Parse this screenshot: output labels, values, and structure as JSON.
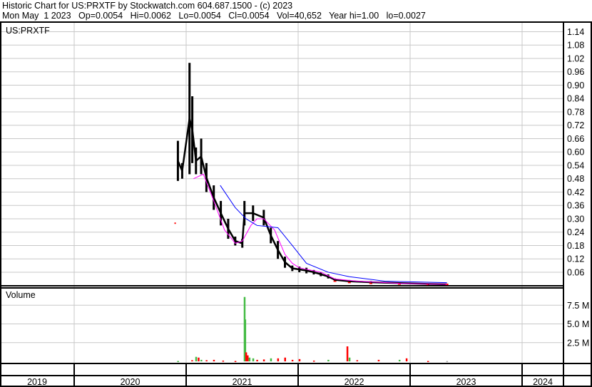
{
  "header": {
    "title": "Historic Chart for US:PRXTF by Stockwatch.com 604.687.1500 - (c) 2023",
    "quote": "Mon May  1 2023   Op=0.0054   Hi=0.0062   Lo=0.0054   Cl=0.0054   Vol=40,652   Year hi=1.00   lo=0.0027"
  },
  "colors": {
    "price": "#000000",
    "down_mark": "#ff0000",
    "ma_short": "#ff00ff",
    "ma_long": "#0000ff",
    "vol_up": "#44bb44",
    "vol_down": "#ff0000",
    "grid": "#c8c8c8"
  },
  "chart_data": [
    {
      "type": "line",
      "title": "US:PRXTF",
      "y_ticks": [
        "0.06",
        "0.12",
        "0.18",
        "0.24",
        "0.30",
        "0.36",
        "0.42",
        "0.48",
        "0.54",
        "0.60",
        "0.66",
        "0.72",
        "0.78",
        "0.84",
        "0.90",
        "0.96",
        "1.02",
        "1.08",
        "1.14"
      ],
      "ylim": [
        0,
        1.14
      ],
      "x_ticks": [
        "2019",
        "2020",
        "2021",
        "2022",
        "2023",
        "2024"
      ],
      "xlim": [
        "2019-05-01",
        "2024-05-01"
      ],
      "grid": true,
      "price_ranges": [
        {
          "date": "2020-11-26",
          "high": 0.28,
          "low": 0.28
        },
        {
          "date": "2020-12-05",
          "high": 0.65,
          "low": 0.47
        },
        {
          "date": "2020-12-19",
          "high": 0.55,
          "low": 0.48
        },
        {
          "date": "2021-01-12",
          "high": 1.0,
          "low": 0.5
        },
        {
          "date": "2021-01-21",
          "high": 0.85,
          "low": 0.55
        },
        {
          "date": "2021-02-02",
          "high": 0.62,
          "low": 0.5
        },
        {
          "date": "2021-02-19",
          "high": 0.66,
          "low": 0.5
        },
        {
          "date": "2021-03-08",
          "high": 0.55,
          "low": 0.42
        },
        {
          "date": "2021-04-01",
          "high": 0.45,
          "low": 0.34
        },
        {
          "date": "2021-04-24",
          "high": 0.38,
          "low": 0.27
        },
        {
          "date": "2021-05-18",
          "high": 0.3,
          "low": 0.21
        },
        {
          "date": "2021-06-10",
          "high": 0.22,
          "low": 0.18
        },
        {
          "date": "2021-07-03",
          "high": 0.21,
          "low": 0.17
        },
        {
          "date": "2021-07-10",
          "high": 0.38,
          "low": 0.27
        },
        {
          "date": "2021-08-07",
          "high": 0.36,
          "low": 0.29
        },
        {
          "date": "2021-09-11",
          "high": 0.34,
          "low": 0.27
        },
        {
          "date": "2021-10-04",
          "high": 0.26,
          "low": 0.19
        },
        {
          "date": "2021-10-27",
          "high": 0.2,
          "low": 0.12
        },
        {
          "date": "2021-11-19",
          "high": 0.13,
          "low": 0.08
        },
        {
          "date": "2021-12-13",
          "high": 0.09,
          "low": 0.065
        },
        {
          "date": "2022-01-05",
          "high": 0.085,
          "low": 0.06
        },
        {
          "date": "2022-01-28",
          "high": 0.08,
          "low": 0.055
        },
        {
          "date": "2022-02-21",
          "high": 0.07,
          "low": 0.05
        },
        {
          "date": "2022-03-16",
          "high": 0.06,
          "low": 0.042
        },
        {
          "date": "2022-04-09",
          "high": 0.05,
          "low": 0.032
        },
        {
          "date": "2022-05-01",
          "high": 0.032,
          "low": 0.02
        },
        {
          "date": "2022-06-17",
          "high": 0.025,
          "low": 0.014
        },
        {
          "date": "2022-08-26",
          "high": 0.02,
          "low": 0.01
        },
        {
          "date": "2022-11-27",
          "high": 0.015,
          "low": 0.007
        },
        {
          "date": "2023-02-28",
          "high": 0.01,
          "low": 0.005
        },
        {
          "date": "2023-05-01",
          "high": 0.0062,
          "low": 0.0054
        }
      ],
      "series": [
        {
          "values": [
            [
              "2021-01-25",
              0.48
            ],
            [
              "2021-02-26",
              0.5
            ],
            [
              "2021-04-01",
              0.38
            ],
            [
              "2021-05-06",
              0.25
            ],
            [
              "2021-06-10",
              0.19
            ],
            [
              "2021-07-03",
              0.2
            ],
            [
              "2021-07-31",
              0.27
            ],
            [
              "2021-08-20",
              0.3
            ],
            [
              "2021-09-11",
              0.3
            ],
            [
              "2021-10-16",
              0.25
            ],
            [
              "2021-11-19",
              0.14
            ],
            [
              "2021-12-13",
              0.1
            ],
            [
              "2022-01-05",
              0.08
            ],
            [
              "2022-03-16",
              0.06
            ],
            [
              "2022-05-01",
              0.03
            ],
            [
              "2022-07-12",
              0.02
            ],
            [
              "2022-11-27",
              0.01
            ],
            [
              "2023-05-01",
              0.006
            ]
          ]
        },
        {
          "values": [
            [
              "2021-04-22",
              0.45
            ],
            [
              "2021-06-10",
              0.35
            ],
            [
              "2021-07-15",
              0.3
            ],
            [
              "2021-08-20",
              0.27
            ],
            [
              "2021-10-27",
              0.26
            ],
            [
              "2021-12-13",
              0.18
            ],
            [
              "2022-01-28",
              0.1
            ],
            [
              "2022-04-09",
              0.06
            ],
            [
              "2022-06-17",
              0.04
            ],
            [
              "2022-10-10",
              0.02
            ],
            [
              "2023-02-28",
              0.015
            ],
            [
              "2023-05-01",
              0.013
            ]
          ]
        }
      ]
    },
    {
      "type": "bar",
      "title": "Volume",
      "y_ticks": [
        "2.5 M",
        "5.0 M",
        "7.5 M"
      ],
      "ylim": [
        0,
        10
      ],
      "bars": [
        {
          "date": "2020-12-05",
          "value": 0.05,
          "dir": "up"
        },
        {
          "date": "2021-01-20",
          "value": 0.15,
          "dir": "down"
        },
        {
          "date": "2021-02-02",
          "value": 0.6,
          "dir": "up"
        },
        {
          "date": "2021-02-10",
          "value": 0.5,
          "dir": "down"
        },
        {
          "date": "2021-02-19",
          "value": 0.2,
          "dir": "up"
        },
        {
          "date": "2021-03-08",
          "value": 0.15,
          "dir": "down"
        },
        {
          "date": "2021-04-01",
          "value": 0.2,
          "dir": "down"
        },
        {
          "date": "2021-05-01",
          "value": 0.1,
          "dir": "down"
        },
        {
          "date": "2021-06-10",
          "value": 0.05,
          "dir": "down"
        },
        {
          "date": "2021-07-10",
          "value": 8.6,
          "dir": "up"
        },
        {
          "date": "2021-07-12",
          "value": 5.6,
          "dir": "up"
        },
        {
          "date": "2021-07-15",
          "value": 1.2,
          "dir": "down"
        },
        {
          "date": "2021-07-20",
          "value": 0.8,
          "dir": "down"
        },
        {
          "date": "2021-07-26",
          "value": 0.5,
          "dir": "up"
        },
        {
          "date": "2021-08-07",
          "value": 0.4,
          "dir": "up"
        },
        {
          "date": "2021-08-20",
          "value": 0.2,
          "dir": "down"
        },
        {
          "date": "2021-09-11",
          "value": 0.25,
          "dir": "down"
        },
        {
          "date": "2021-10-04",
          "value": 0.4,
          "dir": "up"
        },
        {
          "date": "2021-10-27",
          "value": 0.4,
          "dir": "down"
        },
        {
          "date": "2021-11-19",
          "value": 0.5,
          "dir": "down"
        },
        {
          "date": "2021-12-13",
          "value": 0.2,
          "dir": "down"
        },
        {
          "date": "2022-01-05",
          "value": 0.3,
          "dir": "down"
        },
        {
          "date": "2022-02-21",
          "value": 0.1,
          "dir": "down"
        },
        {
          "date": "2022-04-09",
          "value": 0.2,
          "dir": "up"
        },
        {
          "date": "2022-06-10",
          "value": 2.0,
          "dir": "down"
        },
        {
          "date": "2022-06-17",
          "value": 0.5,
          "dir": "up"
        },
        {
          "date": "2022-07-12",
          "value": 0.15,
          "dir": "down"
        },
        {
          "date": "2022-09-20",
          "value": 0.2,
          "dir": "down"
        },
        {
          "date": "2022-11-27",
          "value": 0.2,
          "dir": "up"
        },
        {
          "date": "2022-12-20",
          "value": 0.4,
          "dir": "down"
        },
        {
          "date": "2023-02-28",
          "value": 0.05,
          "dir": "down"
        },
        {
          "date": "2023-05-01",
          "value": 0.04,
          "dir": "flat"
        }
      ]
    }
  ]
}
